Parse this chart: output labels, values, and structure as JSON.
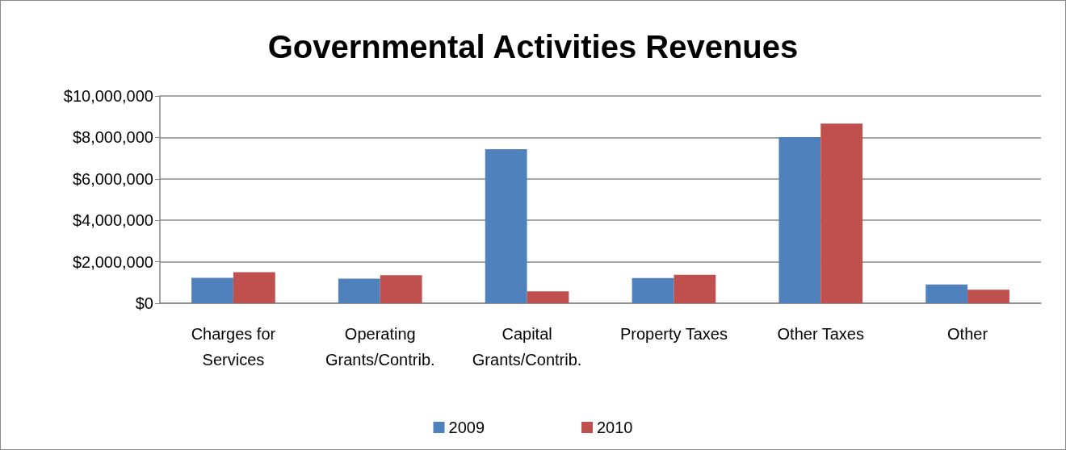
{
  "chart_data": {
    "type": "bar",
    "title": "Governmental Activities Revenues",
    "categories": [
      "Charges for\nServices",
      "Operating\nGrants/Contrib.",
      "Capital\nGrants/Contrib.",
      "Property Taxes",
      "Other Taxes",
      "Other"
    ],
    "series": [
      {
        "name": "2009",
        "color": "#4f81bd",
        "values": [
          1230000,
          1190000,
          7430000,
          1220000,
          8020000,
          900000
        ]
      },
      {
        "name": "2010",
        "color": "#c0504d",
        "values": [
          1500000,
          1350000,
          570000,
          1370000,
          8670000,
          650000
        ]
      }
    ],
    "ylim": [
      0,
      10000000
    ],
    "yticks": [
      {
        "value": 0,
        "label": "$0"
      },
      {
        "value": 2000000,
        "label": "$2,000,000"
      },
      {
        "value": 4000000,
        "label": "$4,000,000"
      },
      {
        "value": 6000000,
        "label": "$6,000,000"
      },
      {
        "value": 8000000,
        "label": "$8,000,000"
      },
      {
        "value": 10000000,
        "label": "$10,000,000"
      }
    ],
    "grid": "y",
    "legend": "bottom"
  }
}
